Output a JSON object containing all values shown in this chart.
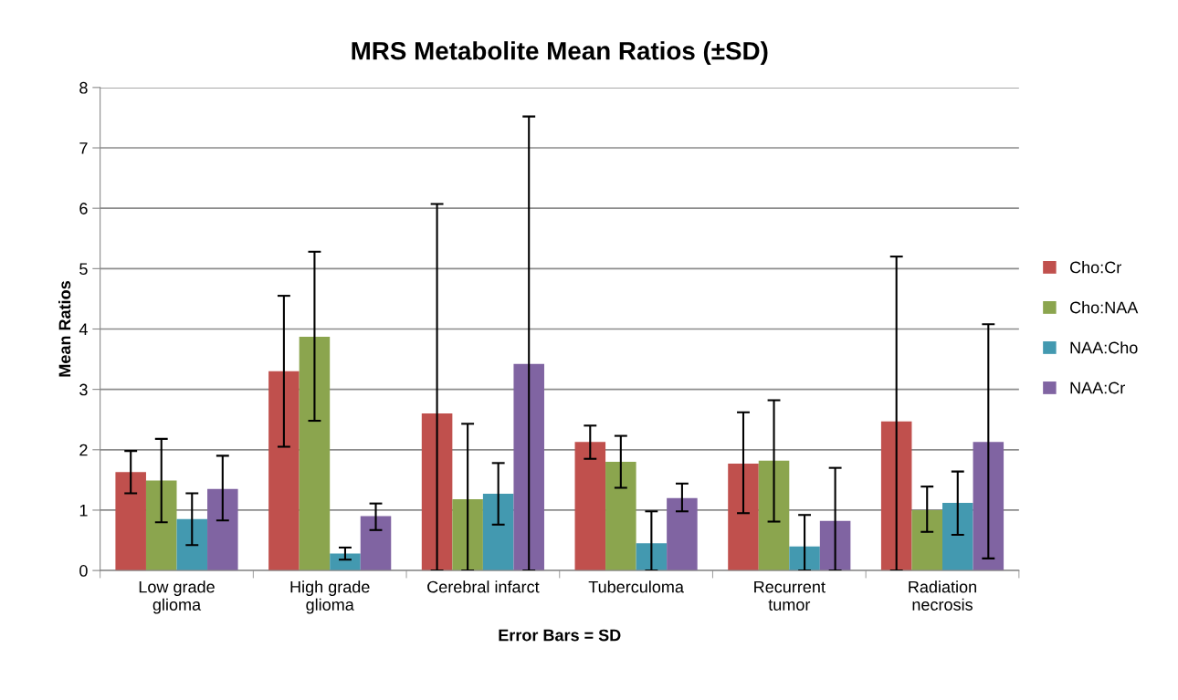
{
  "chart_data": {
    "type": "bar",
    "title": "MRS Metabolite Mean Ratios (±SD)",
    "xlabel": "Error Bars = SD",
    "ylabel": "Mean Ratios",
    "categories": [
      "Low grade\nglioma",
      "High grade\nglioma",
      "Cerebral infarct",
      "Tuberculoma",
      "Recurrent\ntumor",
      "Radiation\nnecrosis"
    ],
    "series": [
      {
        "name": "Cho:Cr",
        "color": "#c0504d",
        "values": [
          1.63,
          3.3,
          2.6,
          2.13,
          1.77,
          2.47
        ],
        "errors": [
          [
            1.28,
            1.98
          ],
          [
            2.05,
            4.55
          ],
          [
            0,
            6.07
          ],
          [
            1.85,
            2.4
          ],
          [
            0.95,
            2.62
          ],
          [
            0,
            5.2
          ]
        ]
      },
      {
        "name": "Cho:NAA",
        "color": "#8ba54e",
        "values": [
          1.49,
          3.87,
          1.18,
          1.8,
          1.82,
          1.0
        ],
        "errors": [
          [
            0.8,
            2.18
          ],
          [
            2.48,
            5.28
          ],
          [
            0,
            2.43
          ],
          [
            1.37,
            2.23
          ],
          [
            0.81,
            2.82
          ],
          [
            0.64,
            1.39
          ]
        ]
      },
      {
        "name": "NAA:Cho",
        "color": "#4399b0",
        "values": [
          0.85,
          0.28,
          1.27,
          0.45,
          0.4,
          1.12
        ],
        "errors": [
          [
            0.42,
            1.28
          ],
          [
            0.18,
            0.38
          ],
          [
            0.76,
            1.78
          ],
          [
            0,
            0.98
          ],
          [
            0,
            0.92
          ],
          [
            0.59,
            1.64
          ]
        ]
      },
      {
        "name": "NAA:Cr",
        "color": "#8064a2",
        "values": [
          1.35,
          0.9,
          3.42,
          1.2,
          0.82,
          2.13
        ],
        "errors": [
          [
            0.83,
            1.9
          ],
          [
            0.67,
            1.11
          ],
          [
            0,
            7.52
          ],
          [
            0.98,
            1.44
          ],
          [
            0,
            1.7
          ],
          [
            0.2,
            4.08
          ]
        ]
      }
    ],
    "ylim": [
      0,
      8
    ],
    "yticks": [
      0,
      1,
      2,
      3,
      4,
      5,
      6,
      7,
      8
    ],
    "grid": "y",
    "legend": "right"
  }
}
